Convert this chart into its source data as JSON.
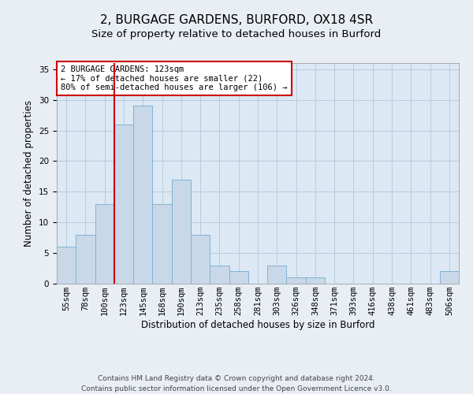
{
  "title": "2, BURGAGE GARDENS, BURFORD, OX18 4SR",
  "subtitle": "Size of property relative to detached houses in Burford",
  "xlabel": "Distribution of detached houses by size in Burford",
  "ylabel": "Number of detached properties",
  "bin_labels": [
    "55sqm",
    "78sqm",
    "100sqm",
    "123sqm",
    "145sqm",
    "168sqm",
    "190sqm",
    "213sqm",
    "235sqm",
    "258sqm",
    "281sqm",
    "303sqm",
    "326sqm",
    "348sqm",
    "371sqm",
    "393sqm",
    "416sqm",
    "438sqm",
    "461sqm",
    "483sqm",
    "506sqm"
  ],
  "bar_values": [
    6,
    8,
    13,
    26,
    29,
    13,
    17,
    8,
    3,
    2,
    0,
    3,
    1,
    1,
    0,
    0,
    0,
    0,
    0,
    0,
    2
  ],
  "bar_color": "#c8d8e8",
  "bar_edge_color": "#7fb3d3",
  "vline_x_index": 3,
  "vline_color": "#cc0000",
  "annotation_box_text": "2 BURGAGE GARDENS: 123sqm\n← 17% of detached houses are smaller (22)\n80% of semi-detached houses are larger (106) →",
  "annotation_box_color": "#cc0000",
  "ylim": [
    0,
    36
  ],
  "yticks": [
    0,
    5,
    10,
    15,
    20,
    25,
    30,
    35
  ],
  "footer_line1": "Contains HM Land Registry data © Crown copyright and database right 2024.",
  "footer_line2": "Contains public sector information licensed under the Open Government Licence v3.0.",
  "background_color": "#e8eef4",
  "plot_bg_color": "#dce8f4",
  "grid_color": "#b8ccdc",
  "title_fontsize": 11,
  "subtitle_fontsize": 9.5,
  "axis_label_fontsize": 8.5,
  "tick_fontsize": 7.5,
  "annotation_fontsize": 7.5,
  "footer_fontsize": 6.5
}
